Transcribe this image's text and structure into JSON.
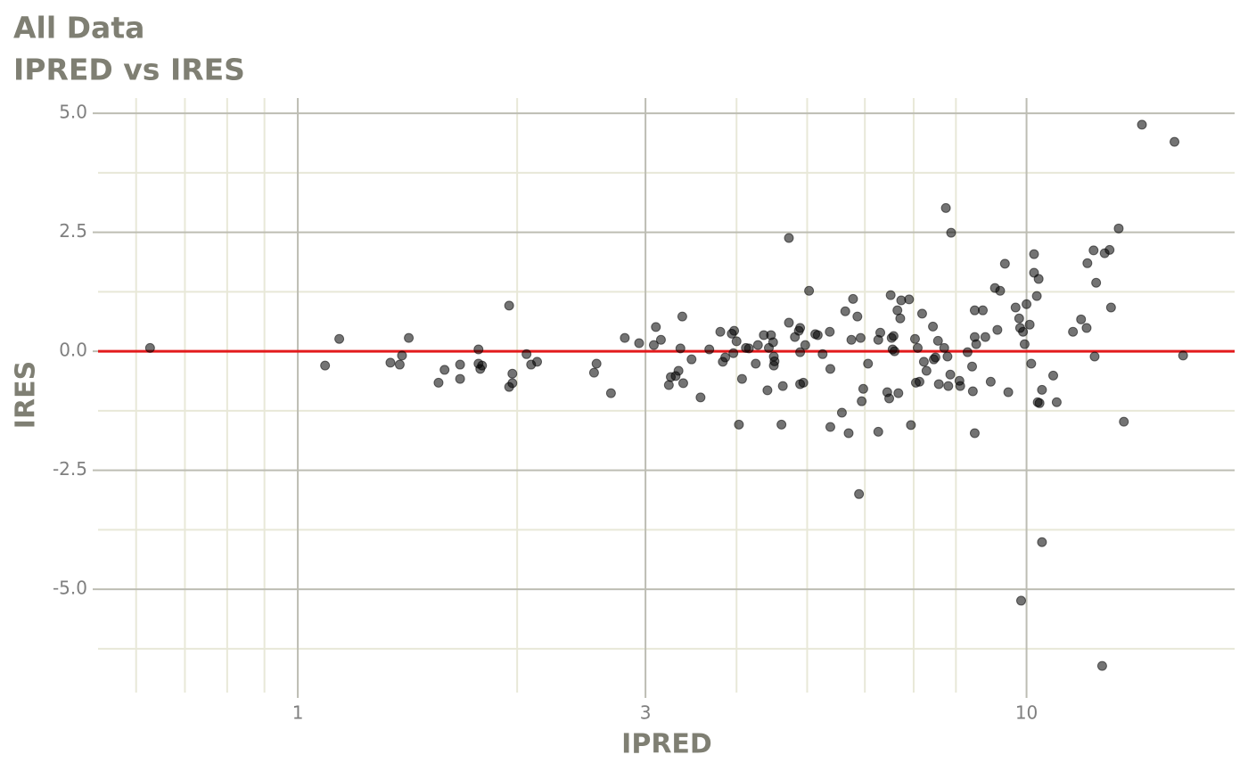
{
  "chart_data": {
    "type": "scatter",
    "title": "All Data",
    "subtitle": "IPRED vs IRES",
    "x_label": "IPRED",
    "y_label": "IRES",
    "x_scale": "log",
    "color": "#000000",
    "opacity": 0.55,
    "xlim": [
      0.532,
      19.3
    ],
    "ylim": [
      -7.17,
      5.32
    ],
    "xticks": [
      1,
      3,
      10
    ],
    "yticks": [
      {
        "value": 5,
        "label": "5.0"
      },
      {
        "value": 2.5,
        "label": "2.5"
      },
      {
        "value": 0,
        "label": "0.0"
      },
      {
        "value": -2.5,
        "label": "-2.5"
      },
      {
        "value": -5,
        "label": "-5.0"
      }
    ],
    "x_minor_grid": [
      0.6,
      0.7,
      0.8,
      0.9,
      2,
      4,
      5,
      6,
      7,
      8
    ],
    "y_minor_grid": [
      3.75,
      1.25,
      -1.25,
      -3.75,
      -6.25
    ],
    "grid": true,
    "reference_line": {
      "y": 0,
      "color": "#e31a1c"
    },
    "x": [
      0.627,
      1.09,
      1.14,
      1.34,
      1.38,
      1.39,
      1.42,
      1.56,
      1.59,
      1.67,
      1.67,
      1.77,
      1.77,
      1.78,
      1.79,
      1.95,
      1.95,
      1.97,
      1.97,
      2.06,
      2.09,
      2.13,
      2.55,
      2.57,
      2.69,
      2.81,
      2.94,
      3.08,
      3.1,
      3.15,
      3.23,
      3.25,
      3.3,
      3.33,
      3.35,
      3.37,
      3.38,
      3.47,
      3.57,
      3.67,
      3.8,
      3.83,
      3.86,
      3.94,
      3.97,
      3.96,
      4.0,
      4.03,
      4.07,
      4.12,
      4.16,
      4.25,
      4.28,
      4.36,
      4.41,
      4.43,
      4.46,
      4.49,
      4.5,
      4.5,
      4.51,
      4.61,
      4.63,
      4.72,
      4.72,
      4.81,
      4.87,
      4.89,
      4.89,
      4.89,
      4.94,
      4.97,
      5.03,
      5.13,
      5.17,
      5.25,
      5.37,
      5.38,
      5.38,
      5.58,
      5.64,
      5.7,
      5.75,
      5.78,
      5.86,
      5.89,
      5.92,
      5.94,
      5.97,
      6.06,
      6.26,
      6.26,
      6.3,
      6.44,
      6.48,
      6.51,
      6.53,
      6.55,
      6.57,
      6.59,
      6.65,
      6.67,
      6.71,
      6.73,
      6.9,
      6.94,
      7.03,
      7.05,
      7.09,
      7.13,
      7.19,
      7.23,
      7.29,
      7.44,
      7.46,
      7.5,
      7.56,
      7.58,
      7.71,
      7.75,
      7.79,
      7.81,
      7.86,
      7.88,
      8.09,
      8.11,
      8.3,
      8.42,
      8.44,
      8.49,
      8.49,
      8.49,
      8.53,
      8.71,
      8.78,
      8.93,
      9.05,
      9.12,
      9.2,
      9.34,
      9.44,
      9.66,
      9.77,
      9.8,
      9.83,
      9.89,
      9.94,
      10.0,
      10.1,
      10.15,
      10.24,
      10.24,
      10.33,
      10.36,
      10.39,
      10.42,
      10.5,
      10.5,
      10.88,
      11.0,
      11.58,
      11.88,
      12.09,
      12.12,
      12.36,
      12.4,
      12.46,
      12.7,
      12.8,
      13.0,
      13.06,
      13.38,
      13.6,
      14.4,
      15.96,
      16.4
    ],
    "values": [
      0.07,
      -0.3,
      0.26,
      -0.24,
      -0.28,
      -0.09,
      0.28,
      -0.66,
      -0.39,
      -0.28,
      -0.58,
      0.04,
      -0.26,
      -0.37,
      -0.3,
      0.96,
      -0.75,
      -0.47,
      -0.67,
      -0.06,
      -0.28,
      -0.22,
      -0.45,
      -0.26,
      -0.88,
      0.28,
      0.17,
      0.13,
      0.51,
      0.24,
      -0.71,
      -0.54,
      -0.52,
      -0.41,
      0.06,
      0.73,
      -0.67,
      -0.17,
      -0.97,
      0.04,
      0.41,
      -0.22,
      -0.13,
      0.37,
      0.43,
      -0.04,
      0.21,
      -1.54,
      -0.58,
      0.07,
      0.06,
      -0.26,
      0.13,
      0.34,
      -0.82,
      0.07,
      0.34,
      0.19,
      -0.11,
      -0.3,
      -0.21,
      -1.54,
      -0.73,
      0.6,
      2.38,
      0.3,
      0.43,
      0.49,
      -0.02,
      -0.69,
      -0.66,
      0.13,
      1.27,
      0.36,
      0.34,
      -0.06,
      0.41,
      -1.59,
      -0.37,
      -1.29,
      0.84,
      -1.72,
      0.24,
      1.1,
      0.73,
      -3.0,
      0.28,
      -1.05,
      -0.79,
      -0.26,
      -1.69,
      0.24,
      0.39,
      -0.86,
      -0.99,
      1.18,
      0.28,
      0.04,
      0.32,
      0.0,
      0.86,
      -0.88,
      0.69,
      1.07,
      1.09,
      -1.55,
      0.26,
      -0.66,
      0.07,
      -0.64,
      0.79,
      -0.22,
      -0.41,
      0.52,
      -0.17,
      -0.13,
      0.22,
      -0.69,
      0.07,
      3.01,
      -0.11,
      -0.73,
      -0.49,
      2.49,
      -0.62,
      -0.73,
      -0.02,
      -0.32,
      -0.84,
      0.3,
      0.86,
      -1.72,
      0.15,
      0.86,
      0.3,
      -0.64,
      1.33,
      0.45,
      1.27,
      1.84,
      -0.86,
      0.92,
      0.69,
      0.49,
      -5.24,
      0.41,
      0.15,
      0.99,
      0.56,
      -0.26,
      2.04,
      1.65,
      1.16,
      -1.07,
      1.52,
      -1.09,
      -0.81,
      -4.01,
      -0.51,
      -1.07,
      0.41,
      0.67,
      0.49,
      1.85,
      2.12,
      -0.11,
      1.44,
      -6.61,
      2.06,
      2.13,
      0.92,
      2.58,
      -1.48,
      4.76,
      4.4,
      -0.09
    ]
  }
}
